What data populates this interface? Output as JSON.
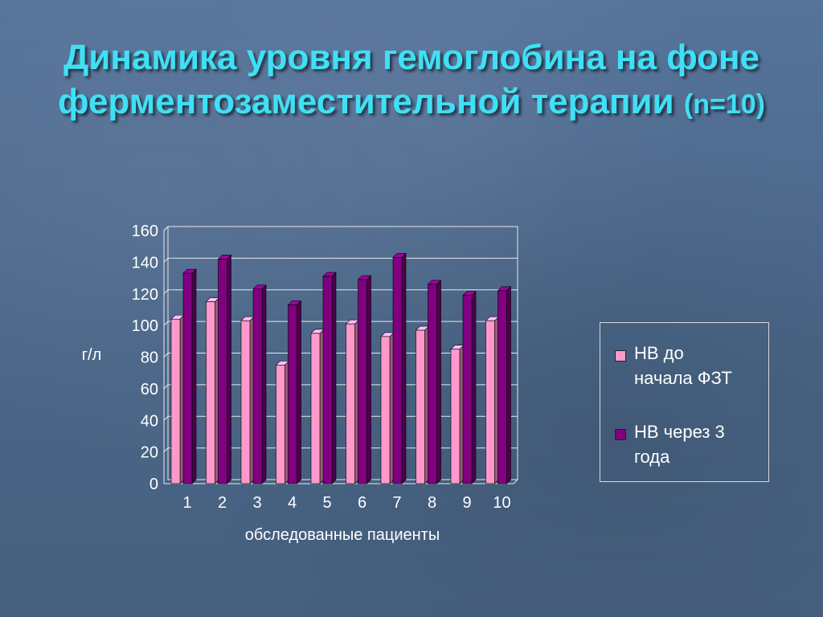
{
  "slide": {
    "title": "Динамика уровня гемоглобина на фоне ферментозаместительной терапии",
    "title_n": "(n=10)"
  },
  "chart_data": {
    "type": "bar",
    "categories": [
      "1",
      "2",
      "3",
      "4",
      "5",
      "6",
      "7",
      "8",
      "9",
      "10"
    ],
    "series": [
      {
        "name": "НВ до начала ФЗТ",
        "values": [
          104,
          115,
          103,
          75,
          95,
          101,
          93,
          97,
          85,
          103
        ],
        "color": "#ff99cc"
      },
      {
        "name": "НВ через 3 года",
        "values": [
          133,
          142,
          123,
          113,
          131,
          129,
          143,
          126,
          119,
          122
        ],
        "color": "#800080"
      }
    ],
    "ylabel": "г/л",
    "xlabel": "обследованные пациенты",
    "ylim": [
      0,
      160
    ],
    "yticks": [
      0,
      20,
      40,
      60,
      80,
      100,
      120,
      140,
      160
    ],
    "grid": true,
    "legend_position": "right",
    "legend": [
      {
        "line1": "НВ до",
        "line2": "начала ФЗТ"
      },
      {
        "line1": "НВ через 3",
        "line2": "года"
      }
    ]
  }
}
